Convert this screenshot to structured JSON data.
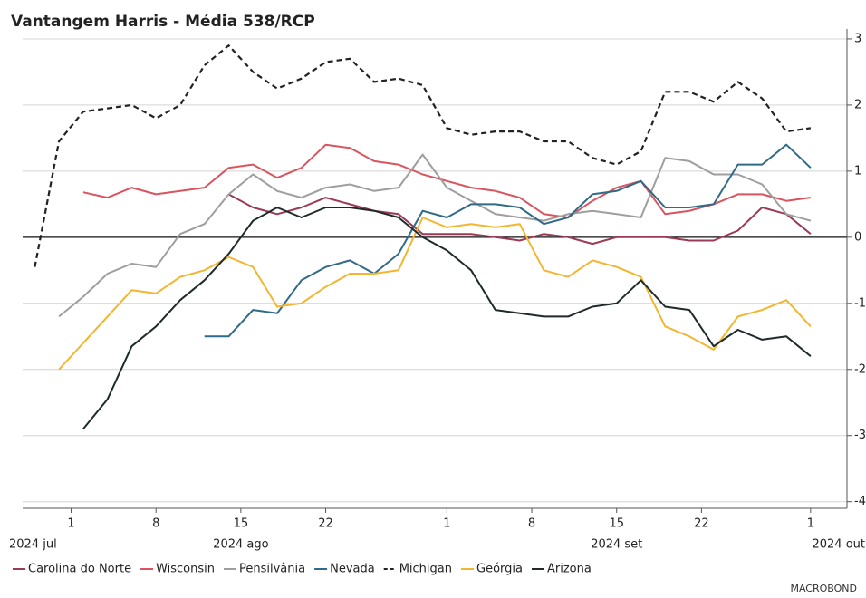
{
  "chart_data": {
    "type": "line",
    "title": "Vantangem Harris - Média 538/RCP",
    "x": [
      "2024-07-29",
      "2024-07-31",
      "2024-08-02",
      "2024-08-04",
      "2024-08-06",
      "2024-08-08",
      "2024-08-10",
      "2024-08-12",
      "2024-08-14",
      "2024-08-16",
      "2024-08-18",
      "2024-08-20",
      "2024-08-22",
      "2024-08-24",
      "2024-08-26",
      "2024-08-28",
      "2024-08-30",
      "2024-09-01",
      "2024-09-03",
      "2024-09-05",
      "2024-09-07",
      "2024-09-09",
      "2024-09-11",
      "2024-09-13",
      "2024-09-15",
      "2024-09-17",
      "2024-09-19",
      "2024-09-21",
      "2024-09-23",
      "2024-09-25",
      "2024-09-27",
      "2024-09-29",
      "2024-10-01"
    ],
    "xlim": [
      "2024-07-28",
      "2024-10-04"
    ],
    "xticks": [
      {
        "value": "2024-08-01",
        "label": "1"
      },
      {
        "value": "2024-08-08",
        "label": "8"
      },
      {
        "value": "2024-08-15",
        "label": "15"
      },
      {
        "value": "2024-08-22",
        "label": "22"
      },
      {
        "value": "2024-09-01",
        "label": "1"
      },
      {
        "value": "2024-09-08",
        "label": "8"
      },
      {
        "value": "2024-09-15",
        "label": "15"
      },
      {
        "value": "2024-09-22",
        "label": "22"
      },
      {
        "value": "2024-10-01",
        "label": "1"
      }
    ],
    "period_labels": [
      {
        "value": "2024-07-28",
        "label": "2024 jul"
      },
      {
        "value": "2024-08-15",
        "label": "2024 ago"
      },
      {
        "value": "2024-09-15",
        "label": "2024 set"
      },
      {
        "value": "2024-10-04",
        "label": "2024 out"
      }
    ],
    "ylim": [
      -4.1,
      3.15
    ],
    "yticks": [
      3,
      2,
      1,
      0,
      -1,
      -2,
      -3,
      -4
    ],
    "grid": true,
    "series": [
      {
        "name": "Carolina do Norte",
        "color": "#9b3a55",
        "values": [
          null,
          null,
          null,
          null,
          null,
          null,
          null,
          null,
          0.65,
          0.45,
          0.35,
          0.45,
          0.6,
          0.5,
          0.4,
          0.35,
          0.05,
          0.05,
          0.05,
          0,
          -0.05,
          0.05,
          0,
          -0.1,
          0,
          0,
          0,
          -0.05,
          -0.05,
          0.1,
          0.45,
          0.35,
          0.05
        ]
      },
      {
        "name": "Wisconsin",
        "color": "#d9545e",
        "values": [
          null,
          null,
          0.68,
          0.6,
          0.75,
          0.65,
          0.7,
          0.75,
          1.05,
          1.1,
          0.9,
          1.05,
          1.4,
          1.35,
          1.15,
          1.1,
          0.95,
          0.85,
          0.75,
          0.7,
          0.6,
          0.35,
          0.3,
          0.55,
          0.75,
          0.85,
          0.35,
          0.4,
          0.5,
          0.65,
          0.65,
          0.55,
          0.6
        ]
      },
      {
        "name": "Pensilvânia",
        "color": "#9e9e9e",
        "values": [
          null,
          -1.2,
          -0.9,
          -0.55,
          -0.4,
          -0.45,
          0.05,
          0.2,
          0.65,
          0.95,
          0.7,
          0.6,
          0.75,
          0.8,
          0.7,
          0.75,
          1.25,
          0.75,
          0.55,
          0.35,
          0.3,
          0.25,
          0.35,
          0.4,
          0.35,
          0.3,
          1.2,
          1.15,
          0.95,
          0.95,
          0.8,
          0.35,
          0.25
        ]
      },
      {
        "name": "Nevada",
        "color": "#2f6b86",
        "values": [
          null,
          null,
          null,
          null,
          null,
          null,
          null,
          -1.5,
          -1.5,
          -1.1,
          -1.15,
          -0.65,
          -0.45,
          -0.35,
          -0.55,
          -0.25,
          0.4,
          0.3,
          0.5,
          0.5,
          0.45,
          0.2,
          0.3,
          0.65,
          0.7,
          0.85,
          0.45,
          0.45,
          0.5,
          1.1,
          1.1,
          1.4,
          1.05
        ]
      },
      {
        "name": "Michigan",
        "color": "#222222",
        "dashed": true,
        "values": [
          -0.45,
          1.45,
          1.9,
          1.95,
          2.0,
          1.8,
          2.0,
          2.6,
          2.9,
          2.5,
          2.25,
          2.4,
          2.65,
          2.7,
          2.35,
          2.4,
          2.3,
          1.65,
          1.55,
          1.6,
          1.6,
          1.45,
          1.45,
          1.2,
          1.1,
          1.3,
          2.2,
          2.2,
          2.05,
          2.35,
          2.1,
          1.6,
          1.65
        ]
      },
      {
        "name": "Geórgia",
        "color": "#f2b630",
        "values": [
          null,
          -2.0,
          -1.6,
          -1.2,
          -0.8,
          -0.85,
          -0.6,
          -0.5,
          -0.3,
          -0.45,
          -1.05,
          -1.0,
          -0.75,
          -0.55,
          -0.55,
          -0.5,
          0.3,
          0.15,
          0.2,
          0.15,
          0.2,
          -0.5,
          -0.6,
          -0.35,
          -0.45,
          -0.6,
          -1.35,
          -1.5,
          -1.7,
          -1.2,
          -1.1,
          -0.95,
          -1.35
        ]
      },
      {
        "name": "Arizona",
        "color": "#1f2a2a",
        "values": [
          null,
          null,
          -2.9,
          -2.45,
          -1.65,
          -1.35,
          -0.95,
          -0.65,
          -0.25,
          0.25,
          0.45,
          0.3,
          0.45,
          0.45,
          0.4,
          0.3,
          0,
          -0.2,
          -0.5,
          -1.1,
          -1.15,
          -1.2,
          -1.2,
          -1.05,
          -1,
          -0.65,
          -1.05,
          -1.1,
          -1.65,
          -1.4,
          -1.55,
          -1.5,
          -1.8
        ]
      }
    ],
    "source_logo": "MACROBOND"
  }
}
